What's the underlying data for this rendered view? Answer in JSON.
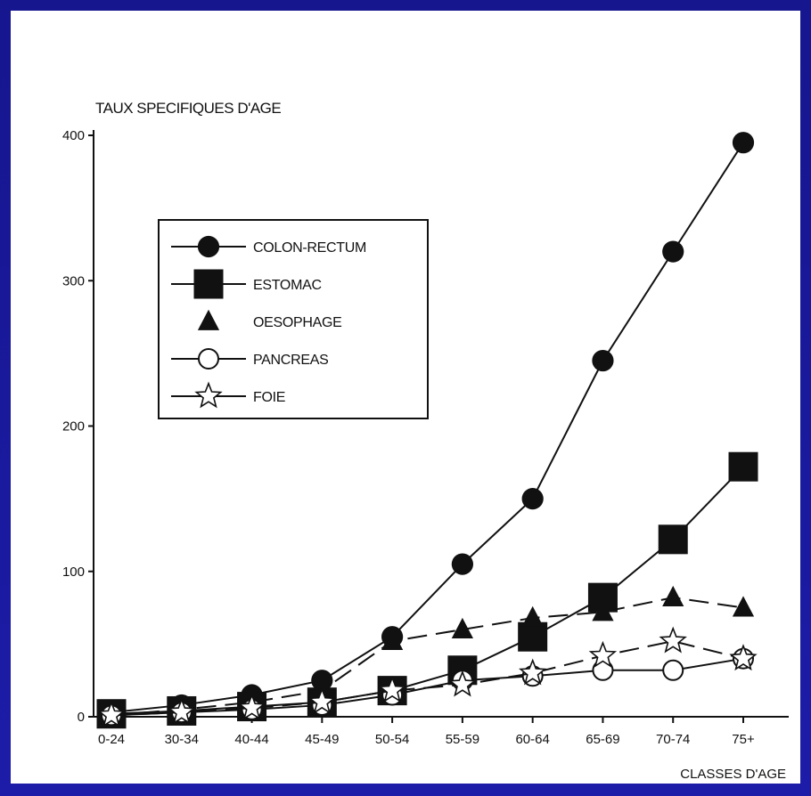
{
  "chart_data": {
    "type": "line",
    "title": "TAUX SPECIFIQUES D'AGE",
    "xlabel": "CLASSES D'AGE",
    "ylabel": "",
    "categories": [
      "0-24",
      "30-34",
      "40-44",
      "45-49",
      "50-54",
      "55-59",
      "60-64",
      "65-69",
      "70-74",
      "75+"
    ],
    "ylim": [
      0,
      400
    ],
    "yticks": [
      0,
      100,
      200,
      300,
      400
    ],
    "grid": false,
    "legend_position": "top-left",
    "series": [
      {
        "name": "COLON-RECTUM",
        "marker": "filled-circle",
        "line": "solid",
        "values": [
          3,
          8,
          15,
          25,
          55,
          105,
          150,
          245,
          320,
          395
        ]
      },
      {
        "name": "ESTOMAC",
        "marker": "filled-square",
        "line": "solid",
        "values": [
          2,
          4,
          7,
          10,
          18,
          32,
          55,
          82,
          122,
          172
        ]
      },
      {
        "name": "OESOPHAGE",
        "marker": "filled-triangle",
        "line": "dashed",
        "values": [
          1,
          5,
          10,
          18,
          52,
          60,
          68,
          72,
          82,
          75
        ]
      },
      {
        "name": "PANCREAS",
        "marker": "open-circle",
        "line": "solid",
        "values": [
          1,
          3,
          5,
          8,
          15,
          25,
          28,
          32,
          32,
          40
        ]
      },
      {
        "name": "FOIE",
        "marker": "open-star",
        "line": "dashed",
        "values": [
          1,
          3,
          6,
          10,
          18,
          22,
          30,
          42,
          52,
          40
        ]
      }
    ]
  },
  "colors": {
    "background": "#1a1a9e",
    "panel": "#ffffff",
    "ink": "#111111"
  }
}
